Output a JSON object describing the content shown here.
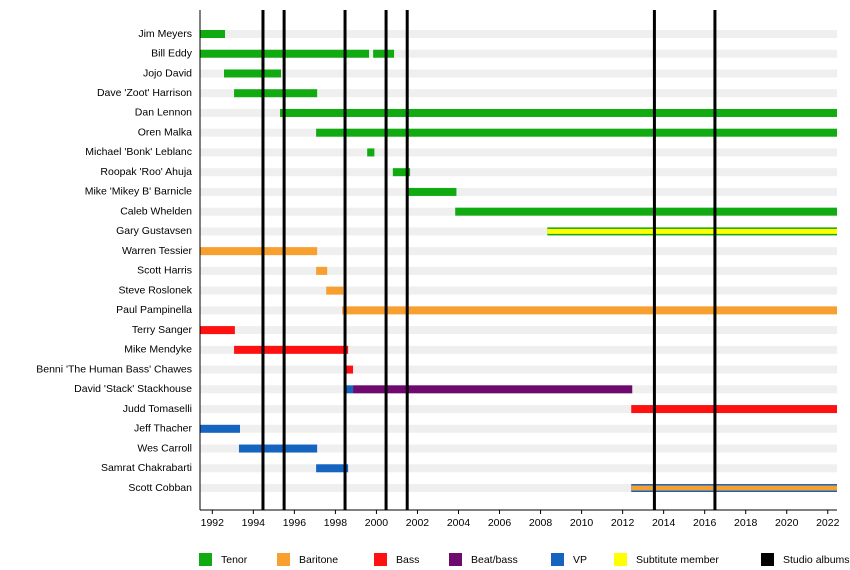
{
  "chart_data": {
    "type": "timeline",
    "categories": [
      "Jim Meyers",
      "Bill Eddy",
      "Jojo David",
      "Dave 'Zoot' Harrison",
      "Dan Lennon",
      "Oren Malka",
      "Michael 'Bonk' Leblanc",
      "Roopak 'Roo' Ahuja",
      "Mike 'Mikey B' Barnicle",
      "Caleb Whelden",
      "Gary Gustavsen",
      "Warren Tessier",
      "Scott Harris",
      "Steve Roslonek",
      "Paul Pampinella",
      "Terry Sanger",
      "Mike Mendyke",
      "Benni 'The Human Bass' Chawes",
      "David 'Stack' Stackhouse",
      "Judd Tomaselli",
      "Jeff Thacher",
      "Wes Carroll",
      "Samrat Chakrabarti",
      "Scott Cobban"
    ],
    "series": [
      {
        "name": "Tenor",
        "color": "#11aa11",
        "values": [
          [
            {
              "start": 1991.4,
              "end": 1992.62
            }
          ],
          [
            {
              "start": 1991.4,
              "end": 1999.64
            },
            {
              "start": 1999.84,
              "end": 2000.86
            }
          ],
          [
            {
              "start": 1992.57,
              "end": 1995.35
            }
          ],
          [
            {
              "start": 1993.06,
              "end": 1997.11
            }
          ],
          [
            {
              "start": 1995.3,
              "end": 2022.45
            }
          ],
          [
            {
              "start": 1997.06,
              "end": 2022.45
            }
          ],
          [
            {
              "start": 1999.55,
              "end": 1999.9
            }
          ],
          [
            {
              "start": 2000.8,
              "end": 2001.64
            }
          ],
          [
            {
              "start": 2001.55,
              "end": 2003.9
            }
          ],
          [
            {
              "start": 2003.84,
              "end": 2022.45
            }
          ],
          [
            {
              "start": 2008.33,
              "end": 2022.45
            }
          ],
          null,
          null,
          null,
          null,
          null,
          null,
          null,
          null,
          null,
          null,
          null,
          null,
          null
        ]
      },
      {
        "name": "Baritone",
        "color": "#f7a030",
        "values": [
          null,
          null,
          null,
          null,
          null,
          null,
          null,
          null,
          null,
          null,
          null,
          [
            {
              "start": 1991.4,
              "end": 1997.11
            }
          ],
          [
            {
              "start": 1997.06,
              "end": 1997.6
            }
          ],
          [
            {
              "start": 1997.55,
              "end": 1998.38
            }
          ],
          [
            {
              "start": 1998.33,
              "end": 2022.45
            }
          ],
          null,
          null,
          null,
          null,
          null,
          null,
          null,
          null,
          [
            {
              "start": 2012.42,
              "end": 2022.45,
              "inset": true
            }
          ]
        ]
      },
      {
        "name": "Bass",
        "color": "#ff1111",
        "values": [
          null,
          null,
          null,
          null,
          null,
          null,
          null,
          null,
          null,
          null,
          null,
          null,
          null,
          null,
          null,
          [
            {
              "start": 1991.4,
              "end": 1993.1
            }
          ],
          [
            {
              "start": 1993.06,
              "end": 1998.62
            }
          ],
          [
            {
              "start": 1998.52,
              "end": 1998.86
            }
          ],
          null,
          [
            {
              "start": 2012.42,
              "end": 2022.45
            }
          ],
          null,
          null,
          null,
          null
        ]
      },
      {
        "name": "Beat/bass",
        "color": "#6e0a6e",
        "values": [
          null,
          null,
          null,
          null,
          null,
          null,
          null,
          null,
          null,
          null,
          null,
          null,
          null,
          null,
          null,
          null,
          null,
          null,
          [
            {
              "start": 1998.86,
              "end": 2012.47
            }
          ],
          null,
          null,
          null,
          null,
          null
        ]
      },
      {
        "name": "VP",
        "color": "#1565c0",
        "values": [
          null,
          null,
          null,
          null,
          null,
          null,
          null,
          null,
          null,
          null,
          null,
          null,
          null,
          null,
          null,
          null,
          null,
          null,
          [
            {
              "start": 1998.52,
              "end": 1998.86
            }
          ],
          null,
          [
            {
              "start": 1991.4,
              "end": 1993.35
            }
          ],
          [
            {
              "start": 1993.3,
              "end": 1997.11
            }
          ],
          [
            {
              "start": 1997.06,
              "end": 1998.62
            }
          ],
          [
            {
              "start": 2012.42,
              "end": 2022.45
            }
          ]
        ]
      },
      {
        "name": "Subtitute member",
        "color": "#ffff00",
        "values": [
          null,
          null,
          null,
          null,
          null,
          null,
          null,
          null,
          null,
          null,
          [
            {
              "start": 2008.33,
              "end": 2022.45,
              "inset": true
            }
          ],
          null,
          null,
          null,
          null,
          null,
          null,
          null,
          null,
          null,
          null,
          null,
          null,
          null
        ]
      }
    ],
    "albums": {
      "name": "Studio albums",
      "color": "#000000",
      "x": [
        1994.47,
        1995.5,
        1998.47,
        2000.47,
        2001.5,
        2013.55,
        2016.5
      ]
    },
    "xlim": [
      1991.4,
      2022.45
    ],
    "xticks": [
      1992,
      1994,
      1996,
      1998,
      2000,
      2002,
      2004,
      2006,
      2008,
      2010,
      2012,
      2014,
      2016,
      2018,
      2020,
      2022
    ],
    "row_stripes": true
  }
}
